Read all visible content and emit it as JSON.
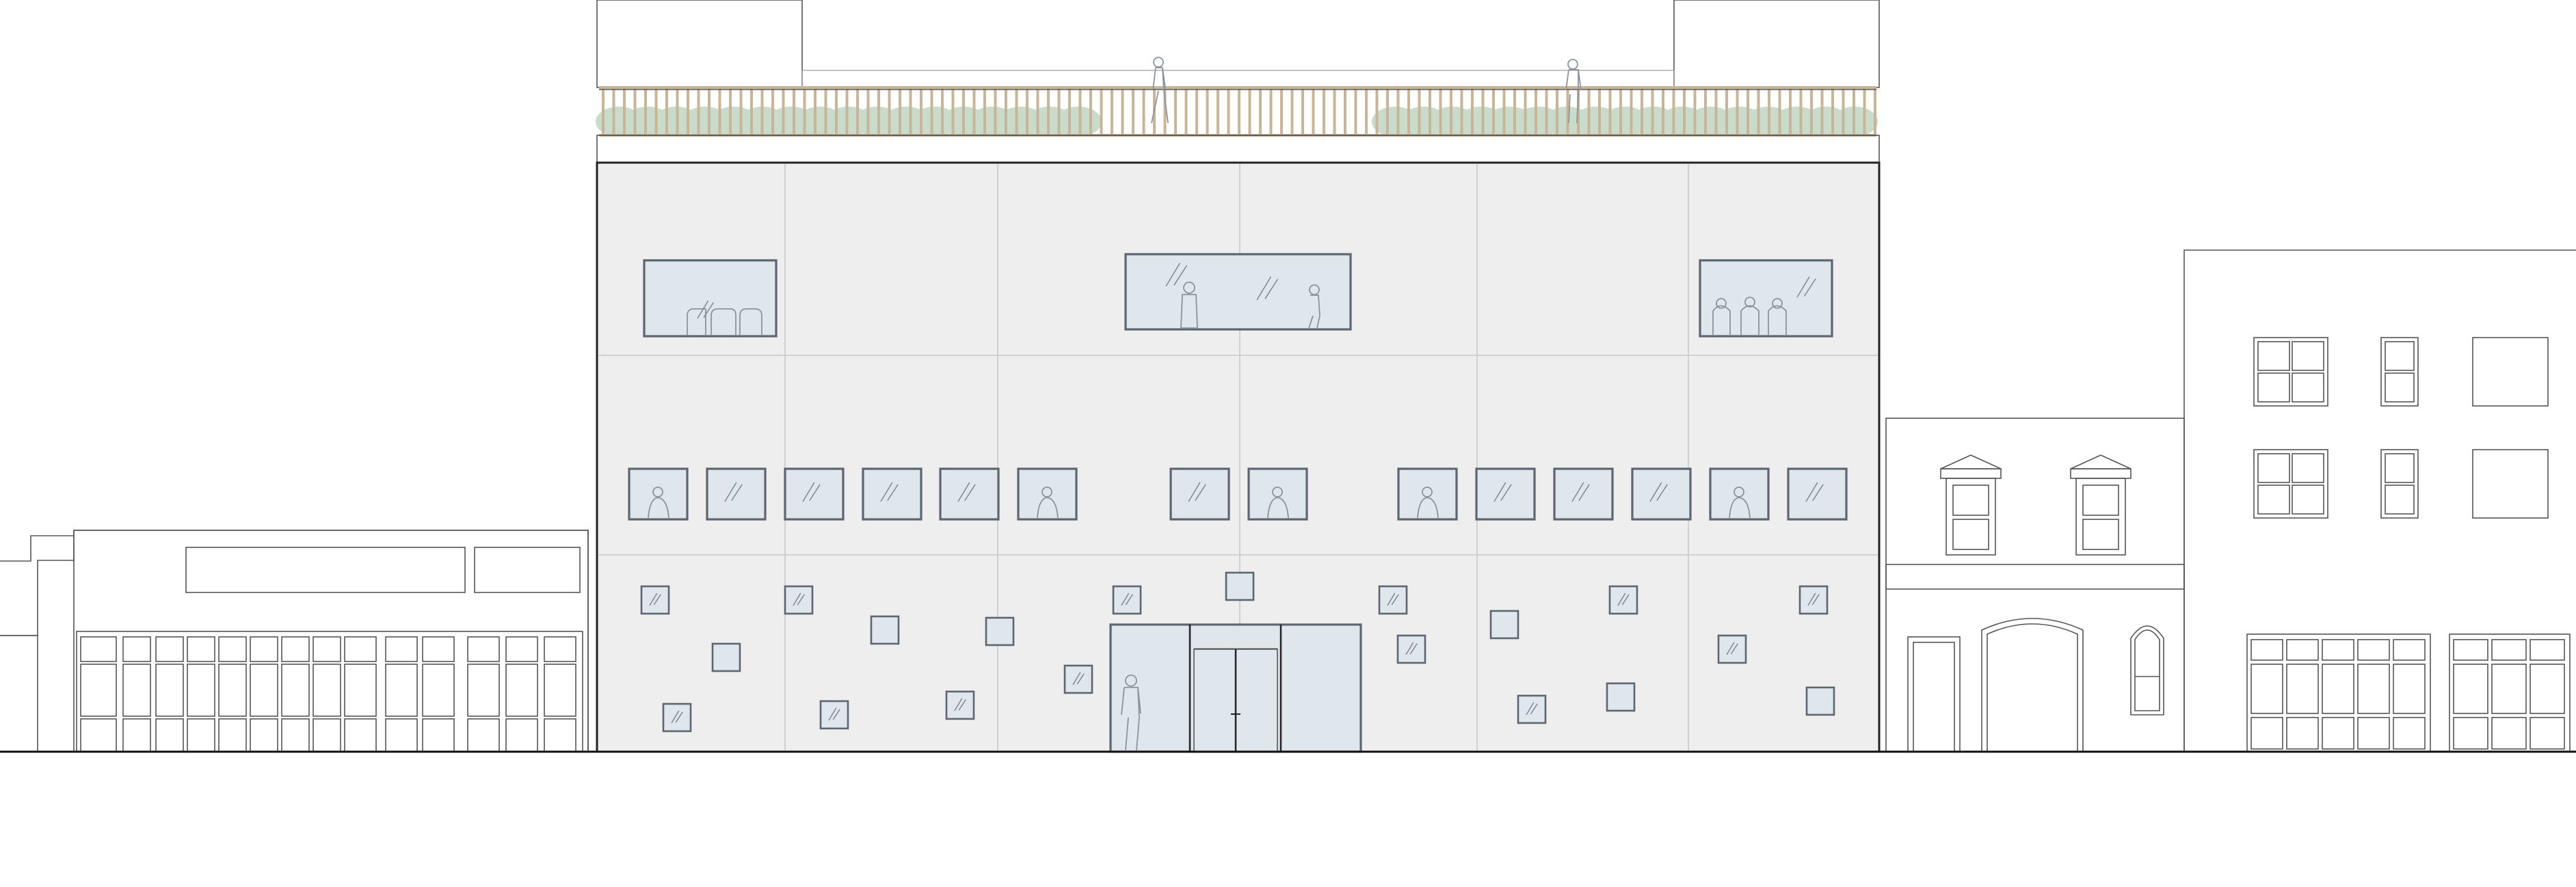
{
  "drawing": {
    "type": "street elevation",
    "colors": {
      "facade_fill": "#eeeeee",
      "glazing_fill": "#dfe6ec",
      "railing": "#c9b596",
      "planting": "#c9dccb",
      "linework": "#555555",
      "ground_line": "#111111"
    },
    "buildings": [
      {
        "id": "left-neighbour-low",
        "storeys": 1
      },
      {
        "id": "left-neighbour-shopfront",
        "storeys": 1,
        "bays": 13
      },
      {
        "id": "main-building",
        "storeys": 3,
        "bays": 6,
        "roof_terrace": true
      },
      {
        "id": "right-neighbour-brick",
        "storeys": 2
      },
      {
        "id": "right-neighbour-tall",
        "storeys": 3
      }
    ]
  }
}
